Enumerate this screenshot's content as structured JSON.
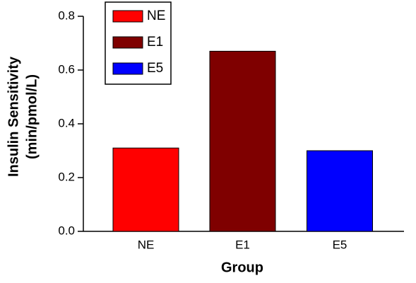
{
  "chart_data": {
    "type": "bar",
    "ylabel": [
      "Insulin Sensitivity",
      "(min/pmol/L)"
    ],
    "xlabel": "Group",
    "categories": [
      "NE",
      "E1",
      "E5"
    ],
    "values": [
      0.31,
      0.67,
      0.3
    ],
    "colors": [
      "#ff0000",
      "#7f0000",
      "#0000ff"
    ],
    "ylim": [
      0,
      0.8
    ],
    "yticks": [
      {
        "value": 0,
        "label": "0.0"
      },
      0.2,
      0.4,
      0.6,
      0.8
    ],
    "legend": "upper left"
  }
}
